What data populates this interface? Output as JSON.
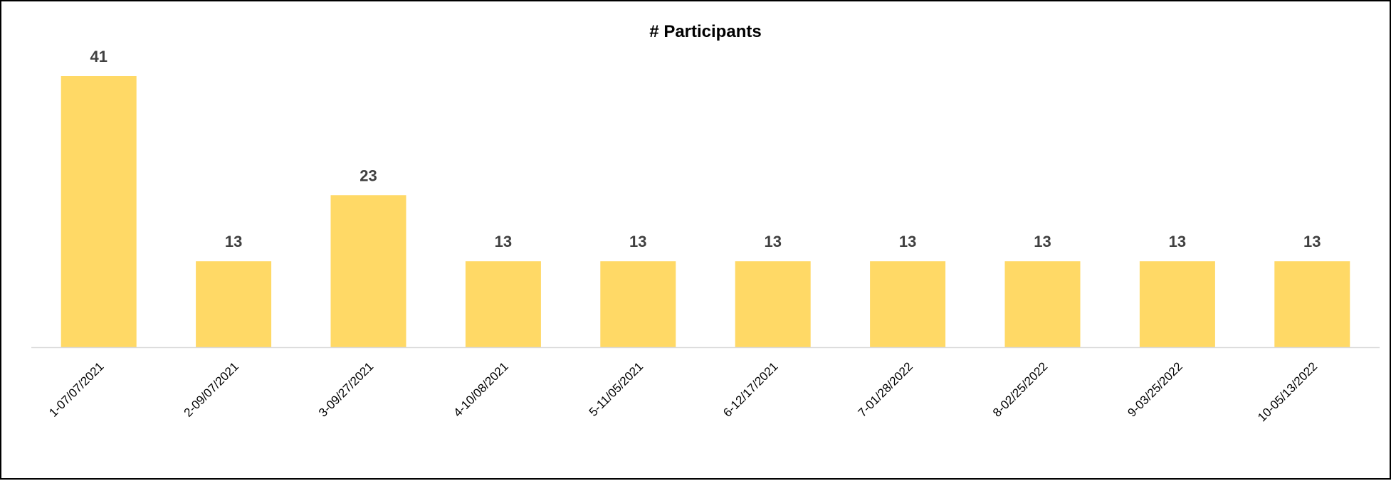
{
  "chart_data": {
    "type": "bar",
    "title": "# Participants",
    "xlabel": "",
    "ylabel": "",
    "categories": [
      "1-07/07/2021",
      "2-09/07/2021",
      "3-09/27/2021",
      "4-10/08/2021",
      "5-11/05/2021",
      "6-12/17/2021",
      "7-01/28/2022",
      "8-02/25/2022",
      "9-03/25/2022",
      "10-05/13/2022"
    ],
    "values": [
      41,
      13,
      23,
      13,
      13,
      13,
      13,
      13,
      13,
      13
    ],
    "ylim": [
      0,
      41
    ],
    "grid": false,
    "legend": "none",
    "data_labels": true,
    "colors": {
      "bar": "#FFD966",
      "data_label": "#404040",
      "axis_line": "#D9D9D9",
      "border": "#000000"
    }
  }
}
